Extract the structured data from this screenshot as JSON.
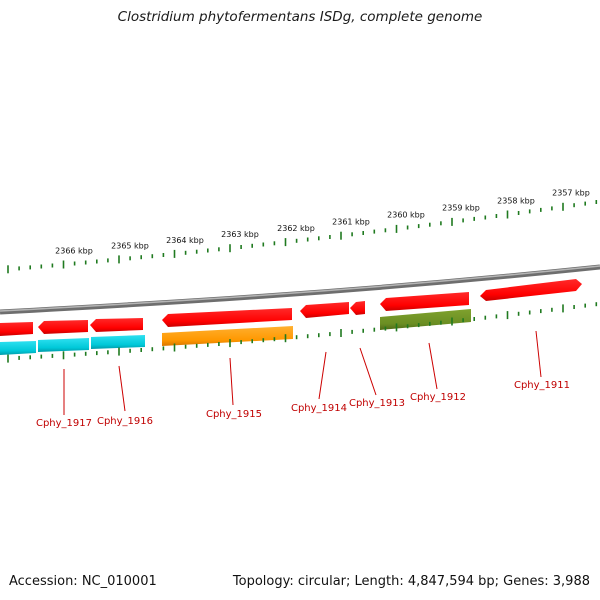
{
  "title": "Clostridium phytofermentans ISDg, complete genome",
  "footer": {
    "accession": "Accession: NC_010001",
    "summary": "Topology: circular; Length: 4,847,594 bp; Genes: 3,988"
  },
  "scale_labels": [
    "2366 kbp",
    "2365 kbp",
    "2364 kbp",
    "2363 kbp",
    "2362 kbp",
    "2361 kbp",
    "2360 kbp",
    "2359 kbp",
    "2358 kbp",
    "2357 kbp"
  ],
  "genes": [
    {
      "label": "Cphy_1917",
      "color": "#00bcd4"
    },
    {
      "label": "Cphy_1916",
      "color": "#00bcd4"
    },
    {
      "label": "Cphy_1915",
      "color": "#ff9800"
    },
    {
      "label": "Cphy_1914",
      "color": "#ff0000"
    },
    {
      "label": "Cphy_1913",
      "color": "#ff0000"
    },
    {
      "label": "Cphy_1912",
      "color": "#6b8e23"
    },
    {
      "label": "Cphy_1911",
      "color": "#ff0000"
    }
  ],
  "colors": {
    "cds_forward": "#ff0000",
    "tick": "#1f7a1f",
    "backbone": "#808080",
    "label_line": "#cc0000"
  }
}
